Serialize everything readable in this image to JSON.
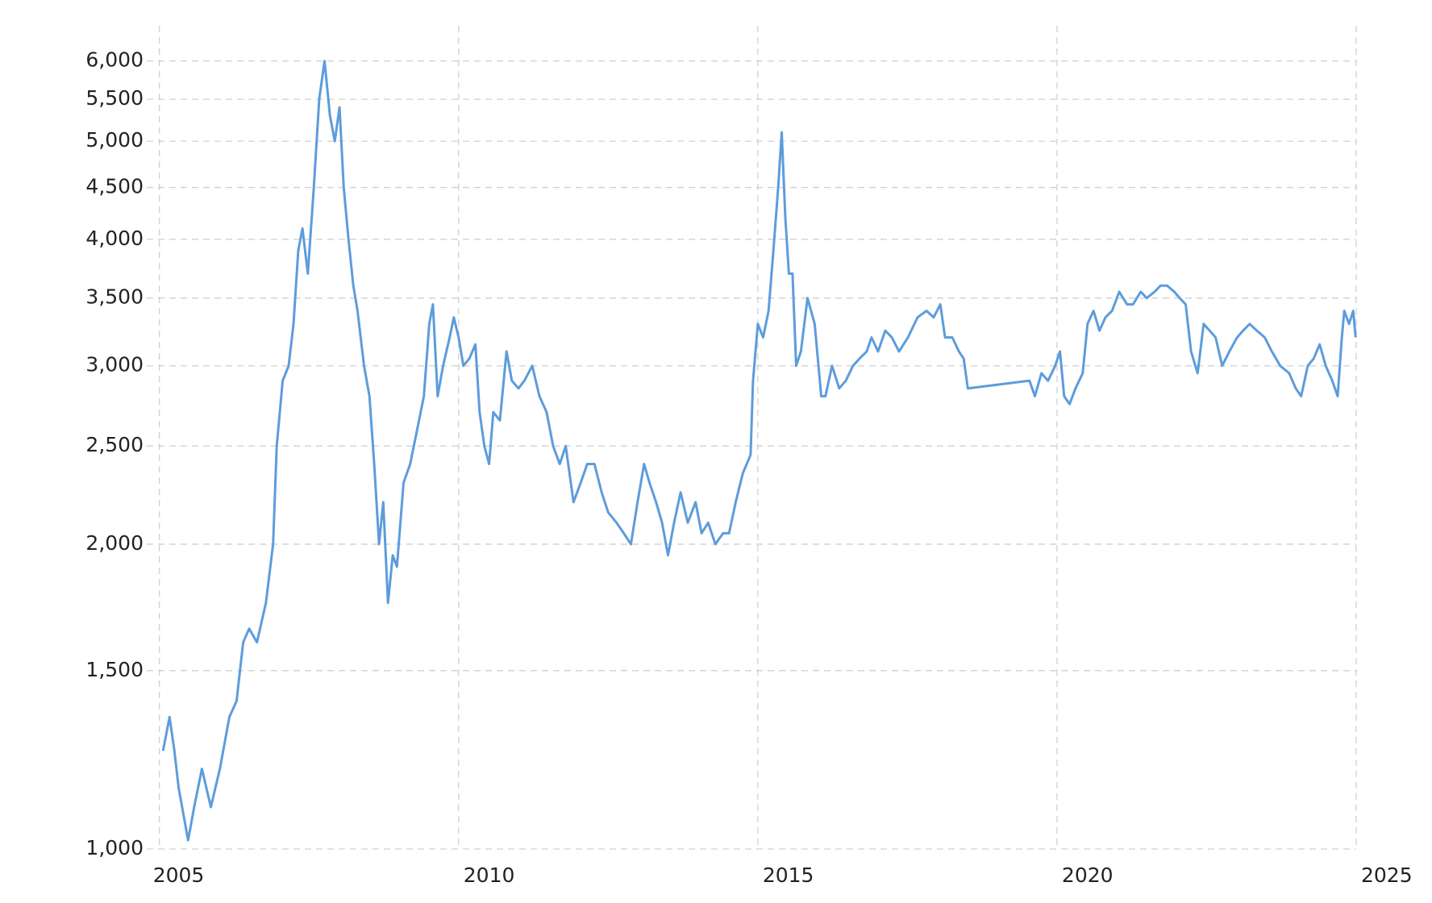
{
  "chart_data": {
    "type": "line",
    "log_y": true,
    "grid": true,
    "xlim": [
      2004.95,
      2025
    ],
    "xticks": [
      2005,
      2010,
      2015,
      2020,
      2025
    ],
    "ylim": [
      1000,
      6500
    ],
    "yticks": [
      {
        "value": 1000,
        "label": "1,000"
      },
      {
        "value": 1500,
        "label": "1,500"
      },
      {
        "value": 2000,
        "label": "2,000"
      },
      {
        "value": 2500,
        "label": "2,500"
      },
      {
        "value": 3000,
        "label": "3,000"
      },
      {
        "value": 3500,
        "label": "3,500"
      },
      {
        "value": 4000,
        "label": "4,000"
      },
      {
        "value": 4500,
        "label": "4,500"
      },
      {
        "value": 5000,
        "label": "5,000"
      },
      {
        "value": 5500,
        "label": "5,500"
      },
      {
        "value": 6000,
        "label": "6,000"
      }
    ],
    "color": "#5d9cdb",
    "x": [
      2005.06,
      2005.17,
      2005.25,
      2005.32,
      2005.48,
      2005.58,
      2005.71,
      2005.86,
      2006.01,
      2006.17,
      2006.29,
      2006.4,
      2006.5,
      2006.63,
      2006.78,
      2006.9,
      2006.96,
      2007.06,
      2007.16,
      2007.24,
      2007.32,
      2007.39,
      2007.48,
      2007.58,
      2007.67,
      2007.76,
      2007.85,
      2007.93,
      2008.01,
      2008.08,
      2008.16,
      2008.24,
      2008.31,
      2008.42,
      2008.51,
      2008.59,
      2008.67,
      2008.74,
      2008.82,
      2008.9,
      2008.97,
      2009.08,
      2009.19,
      2009.31,
      2009.42,
      2009.51,
      2009.57,
      2009.65,
      2009.74,
      2009.85,
      2009.92,
      2010.0,
      2010.08,
      2010.18,
      2010.28,
      2010.35,
      2010.43,
      2010.51,
      2010.58,
      2010.69,
      2010.8,
      2010.89,
      2011.0,
      2011.1,
      2011.23,
      2011.35,
      2011.47,
      2011.58,
      2011.69,
      2011.79,
      2011.92,
      2012.04,
      2012.15,
      2012.27,
      2012.39,
      2012.5,
      2012.64,
      2012.76,
      2012.88,
      2012.99,
      2013.1,
      2013.19,
      2013.3,
      2013.4,
      2013.5,
      2013.6,
      2013.71,
      2013.83,
      2013.96,
      2014.06,
      2014.17,
      2014.29,
      2014.42,
      2014.52,
      2014.63,
      2014.75,
      2014.88,
      2014.92,
      2015.0,
      2015.09,
      2015.18,
      2015.26,
      2015.34,
      2015.4,
      2015.46,
      2015.52,
      2015.58,
      2015.64,
      2015.72,
      2015.83,
      2015.95,
      2016.06,
      2016.13,
      2016.24,
      2016.36,
      2016.47,
      2016.59,
      2016.7,
      2016.82,
      2016.9,
      2017.01,
      2017.13,
      2017.24,
      2017.36,
      2017.51,
      2017.67,
      2017.82,
      2017.94,
      2018.05,
      2018.13,
      2018.25,
      2018.36,
      2018.44,
      2018.51,
      2019.54,
      2019.63,
      2019.74,
      2019.85,
      2019.97,
      2020.05,
      2020.12,
      2020.21,
      2020.31,
      2020.43,
      2020.51,
      2020.61,
      2020.71,
      2020.81,
      2020.92,
      2021.04,
      2021.17,
      2021.27,
      2021.4,
      2021.5,
      2021.63,
      2021.73,
      2021.84,
      2021.96,
      2022.05,
      2022.15,
      2022.24,
      2022.35,
      2022.45,
      2022.55,
      2022.65,
      2022.76,
      2022.88,
      2023.01,
      2023.11,
      2023.22,
      2023.34,
      2023.47,
      2023.59,
      2023.73,
      2023.88,
      2023.99,
      2024.08,
      2024.19,
      2024.29,
      2024.39,
      2024.49,
      2024.6,
      2024.69,
      2024.76,
      2024.8,
      2024.88,
      2024.95,
      2024.99
    ],
    "values": [
      1250,
      1350,
      1250,
      1150,
      1020,
      1100,
      1200,
      1100,
      1200,
      1350,
      1400,
      1600,
      1650,
      1600,
      1750,
      2000,
      2500,
      2900,
      3000,
      3300,
      3900,
      4100,
      3700,
      4500,
      5500,
      6000,
      5300,
      5000,
      5400,
      4500,
      4000,
      3600,
      3400,
      3000,
      2800,
      2400,
      2000,
      2200,
      1750,
      1950,
      1900,
      2300,
      2400,
      2600,
      2800,
      3300,
      3450,
      2800,
      3000,
      3200,
      3350,
      3200,
      3000,
      3050,
      3150,
      2700,
      2500,
      2400,
      2700,
      2650,
      3100,
      2900,
      2850,
      2900,
      3000,
      2800,
      2700,
      2500,
      2400,
      2500,
      2200,
      2300,
      2400,
      2400,
      2250,
      2150,
      2100,
      2050,
      2000,
      2200,
      2400,
      2300,
      2200,
      2100,
      1950,
      2100,
      2250,
      2100,
      2200,
      2050,
      2100,
      2000,
      2050,
      2050,
      2200,
      2350,
      2450,
      2900,
      3300,
      3200,
      3400,
      3900,
      4500,
      5100,
      4200,
      3700,
      3700,
      3000,
      3100,
      3500,
      3300,
      2800,
      2800,
      3000,
      2850,
      2900,
      3000,
      3050,
      3100,
      3200,
      3100,
      3250,
      3200,
      3100,
      3200,
      3350,
      3400,
      3350,
      3450,
      3200,
      3200,
      3100,
      3050,
      2850,
      2900,
      2800,
      2950,
      2900,
      3000,
      3100,
      2800,
      2750,
      2850,
      2950,
      3300,
      3400,
      3250,
      3350,
      3400,
      3550,
      3450,
      3450,
      3550,
      3500,
      3550,
      3600,
      3600,
      3550,
      3500,
      3450,
      3100,
      2950,
      3300,
      3250,
      3200,
      3000,
      3100,
      3200,
      3250,
      3300,
      3250,
      3200,
      3100,
      3000,
      2950,
      2850,
      2800,
      3000,
      3050,
      3150,
      3000,
      2900,
      2800,
      3200,
      3400,
      3300,
      3400,
      3200
    ]
  }
}
